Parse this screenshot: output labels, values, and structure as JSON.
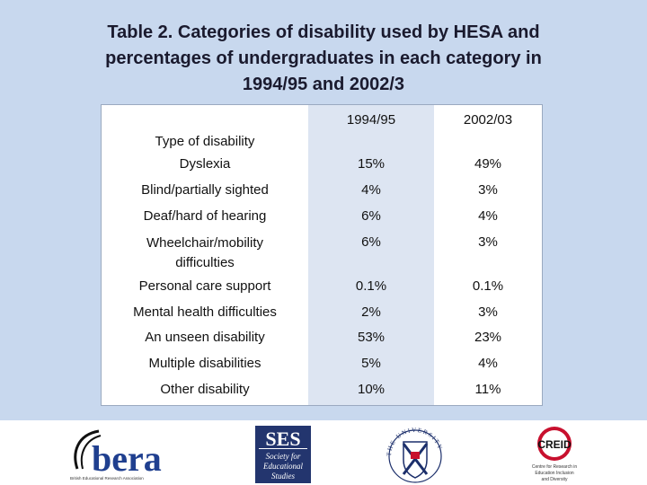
{
  "title": {
    "line1": "Table 2.  Categories of disability used by HESA and",
    "line2": "percentages of undergraduates in each category in",
    "line3": "1994/95 and 2002/3"
  },
  "table": {
    "header": {
      "type": "Type of disability",
      "year1": "1994/95",
      "year2": "2002/03"
    },
    "rows": [
      {
        "type": "Dyslexia",
        "y1": "15%",
        "y2": "49%"
      },
      {
        "type": "Blind/partially sighted",
        "y1": "4%",
        "y2": "3%"
      },
      {
        "type": "Deaf/hard of hearing",
        "y1": "6%",
        "y2": "4%"
      },
      {
        "type_line1": "Wheelchair/mobility",
        "type_line2": "difficulties",
        "y1": "6%",
        "y2": "3%"
      },
      {
        "type": "Personal care support",
        "y1": "0.1%",
        "y2": "0.1%"
      },
      {
        "type": "Mental health difficulties",
        "y1": "2%",
        "y2": "3%"
      },
      {
        "type": "An unseen disability",
        "y1": "53%",
        "y2": "23%"
      },
      {
        "type": "Multiple disabilities",
        "y1": "5%",
        "y2": "4%"
      },
      {
        "type": "Other disability",
        "y1": "10%",
        "y2": "11%"
      }
    ]
  },
  "logos": {
    "bera": {
      "name": "bera",
      "tagline": "British Educational Research Association"
    },
    "ses": {
      "name": "SES",
      "line1": "Society for",
      "line2": "Educational",
      "line3": "Studies"
    },
    "edinburgh": {
      "crest_text": "THE UNIVERSITY OF EDINBURGH"
    },
    "creid": {
      "name": "CREID",
      "line1": "Centre for Research in",
      "line2": "Education Inclusion",
      "line3": "and Diversity"
    }
  },
  "colors": {
    "background": "#c8d8ee",
    "column_shade": "#dde5f2",
    "bera_blue": "#1f3f8f",
    "ses_blue": "#23356e",
    "creid_red": "#c8102e"
  }
}
